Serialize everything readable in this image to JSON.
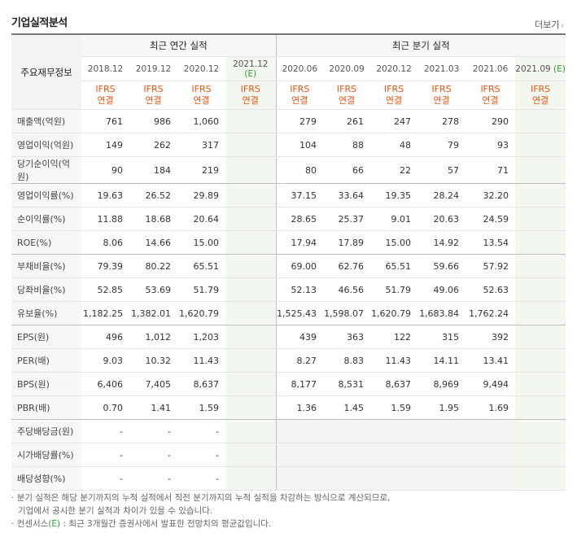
{
  "header": {
    "title": "기업실적분석",
    "more_label": "더보기"
  },
  "table": {
    "row_header": "주요재무정보",
    "group_annual": "최근 연간 실적",
    "group_quarter": "최근 분기 실적",
    "annual_periods": [
      "2018.12",
      "2019.12",
      "2020.12",
      "2021.12"
    ],
    "quarter_periods": [
      "2020.06",
      "2020.09",
      "2020.12",
      "2021.03",
      "2021.06",
      "2021.09"
    ],
    "estimate_mark": "(E)",
    "ifrs_line1": "IFRS",
    "ifrs_line2": "연결",
    "rows": [
      {
        "label": "매출액(억원)",
        "annual": [
          "761",
          "986",
          "1,060",
          ""
        ],
        "quarter": [
          "279",
          "261",
          "247",
          "278",
          "290",
          ""
        ]
      },
      {
        "label": "영업이익(억원)",
        "annual": [
          "149",
          "262",
          "317",
          ""
        ],
        "quarter": [
          "104",
          "88",
          "48",
          "79",
          "93",
          ""
        ]
      },
      {
        "label": "당기순이익(억원)",
        "annual": [
          "90",
          "184",
          "219",
          ""
        ],
        "quarter": [
          "80",
          "66",
          "22",
          "57",
          "71",
          ""
        ]
      },
      {
        "label": "영업이익률(%)",
        "annual": [
          "19.63",
          "26.52",
          "29.89",
          ""
        ],
        "quarter": [
          "37.15",
          "33.64",
          "19.35",
          "28.24",
          "32.20",
          ""
        ]
      },
      {
        "label": "순이익률(%)",
        "annual": [
          "11.88",
          "18.68",
          "20.64",
          ""
        ],
        "quarter": [
          "28.65",
          "25.37",
          "9.01",
          "20.63",
          "24.59",
          ""
        ]
      },
      {
        "label": "ROE(%)",
        "annual": [
          "8.06",
          "14.66",
          "15.00",
          ""
        ],
        "quarter": [
          "17.94",
          "17.89",
          "15.00",
          "14.92",
          "13.54",
          ""
        ]
      },
      {
        "label": "부채비율(%)",
        "annual": [
          "79.39",
          "80.22",
          "65.51",
          ""
        ],
        "quarter": [
          "69.00",
          "62.76",
          "65.51",
          "59.66",
          "57.92",
          ""
        ]
      },
      {
        "label": "당좌비율(%)",
        "annual": [
          "52.85",
          "53.69",
          "51.79",
          ""
        ],
        "quarter": [
          "52.13",
          "46.56",
          "51.79",
          "49.06",
          "52.63",
          ""
        ]
      },
      {
        "label": "유보율(%)",
        "annual": [
          "1,182.25",
          "1,382.01",
          "1,620.79",
          ""
        ],
        "quarter": [
          "1,525.43",
          "1,598.07",
          "1,620.79",
          "1,683.84",
          "1,762.24",
          ""
        ]
      },
      {
        "label": "EPS(원)",
        "annual": [
          "496",
          "1,012",
          "1,203",
          ""
        ],
        "quarter": [
          "439",
          "363",
          "122",
          "315",
          "392",
          ""
        ]
      },
      {
        "label": "PER(배)",
        "annual": [
          "9.03",
          "10.32",
          "11.43",
          ""
        ],
        "quarter": [
          "8.27",
          "8.83",
          "11.43",
          "14.11",
          "13.41",
          ""
        ]
      },
      {
        "label": "BPS(원)",
        "annual": [
          "6,406",
          "7,405",
          "8,637",
          ""
        ],
        "quarter": [
          "8,177",
          "8,531",
          "8,637",
          "8,969",
          "9,494",
          ""
        ]
      },
      {
        "label": "PBR(배)",
        "annual": [
          "0.70",
          "1.41",
          "1.59",
          ""
        ],
        "quarter": [
          "1.36",
          "1.45",
          "1.59",
          "1.95",
          "1.69",
          ""
        ]
      },
      {
        "label": "주당배당금(원)",
        "annual": [
          "-",
          "-",
          "-",
          ""
        ],
        "quarter": [
          "",
          "",
          "",
          "",
          "",
          ""
        ]
      },
      {
        "label": "시가배당률(%)",
        "annual": [
          "-",
          "-",
          "-",
          ""
        ],
        "quarter": [
          "",
          "",
          "",
          "",
          "",
          ""
        ]
      },
      {
        "label": "배당성향(%)",
        "annual": [
          "-",
          "-",
          "-",
          ""
        ],
        "quarter": [
          "",
          "",
          "",
          "",
          "",
          ""
        ]
      }
    ],
    "group_break_after": [
      2,
      5,
      8,
      12
    ]
  },
  "notes": {
    "line1": "분기 실적은 해당 분기까지의 누적 실적에서 직전 분기까지의 누적 실적을 차감하는 방식으로 계산되므로,",
    "line2": "기업에서 공시한 분기 실적과 차이가 있을 수 있습니다.",
    "line3_prefix": "컨센서스",
    "line3_mark": "(E)",
    "line3_suffix": ": 최근 3개월간 증권사에서 발표한 전망치의 평균값입니다."
  },
  "colors": {
    "accent_orange": "#ee5511",
    "estimate_green": "#2e9d2e",
    "estimate_bg": "#f2f8f0"
  }
}
